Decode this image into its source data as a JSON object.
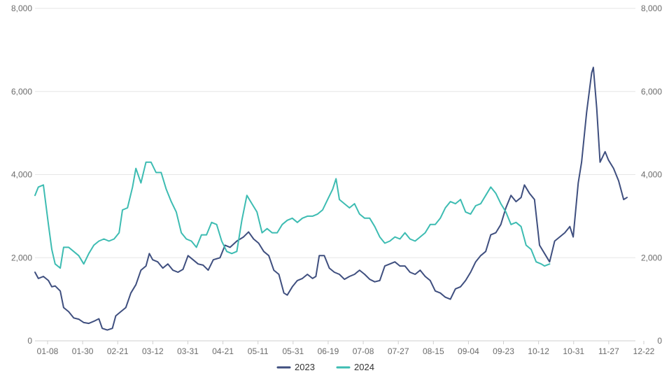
{
  "chart_data": {
    "type": "line",
    "title": "",
    "xlabel": "",
    "ylabel": "",
    "ylim": [
      0,
      8000
    ],
    "y2lim": [
      0,
      8000
    ],
    "y_ticks": [
      "0",
      "2,000",
      "4,000",
      "6,000",
      "8,000"
    ],
    "y2_ticks": [
      "0",
      "2,000",
      "4,000",
      "6,000",
      "8,000"
    ],
    "x_tick_labels": [
      "01-08",
      "01-30",
      "02-21",
      "03-12",
      "03-31",
      "04-21",
      "05-11",
      "05-31",
      "06-19",
      "07-08",
      "07-27",
      "08-15",
      "09-04",
      "09-23",
      "10-12",
      "10-31",
      "11-27",
      "12-22"
    ],
    "grid": true,
    "legend_position": "bottom-center",
    "series": [
      {
        "name": "2023",
        "color": "#3f4f7f",
        "points": [
          [
            "01-01",
            1650
          ],
          [
            "01-03",
            1500
          ],
          [
            "01-06",
            1550
          ],
          [
            "01-09",
            1450
          ],
          [
            "01-11",
            1300
          ],
          [
            "01-13",
            1320
          ],
          [
            "01-16",
            1200
          ],
          [
            "01-18",
            800
          ],
          [
            "01-21",
            700
          ],
          [
            "01-24",
            550
          ],
          [
            "01-27",
            520
          ],
          [
            "01-30",
            440
          ],
          [
            "02-02",
            420
          ],
          [
            "02-05",
            470
          ],
          [
            "02-08",
            530
          ],
          [
            "02-10",
            300
          ],
          [
            "02-13",
            260
          ],
          [
            "02-16",
            300
          ],
          [
            "02-18",
            600
          ],
          [
            "02-21",
            700
          ],
          [
            "02-24",
            800
          ],
          [
            "02-27",
            1150
          ],
          [
            "03-02",
            1350
          ],
          [
            "03-05",
            1700
          ],
          [
            "03-08",
            1800
          ],
          [
            "03-10",
            2100
          ],
          [
            "03-12",
            1950
          ],
          [
            "03-15",
            1900
          ],
          [
            "03-18",
            1750
          ],
          [
            "03-21",
            1850
          ],
          [
            "03-24",
            1700
          ],
          [
            "03-27",
            1650
          ],
          [
            "03-30",
            1720
          ],
          [
            "04-02",
            2050
          ],
          [
            "04-05",
            1950
          ],
          [
            "04-08",
            1850
          ],
          [
            "04-11",
            1820
          ],
          [
            "04-14",
            1700
          ],
          [
            "04-17",
            1950
          ],
          [
            "04-21",
            2000
          ],
          [
            "04-24",
            2300
          ],
          [
            "04-27",
            2250
          ],
          [
            "05-01",
            2400
          ],
          [
            "05-05",
            2500
          ],
          [
            "05-08",
            2620
          ],
          [
            "05-11",
            2450
          ],
          [
            "05-14",
            2350
          ],
          [
            "05-17",
            2150
          ],
          [
            "05-20",
            2050
          ],
          [
            "05-23",
            1700
          ],
          [
            "05-26",
            1600
          ],
          [
            "05-29",
            1150
          ],
          [
            "05-31",
            1100
          ],
          [
            "06-03",
            1300
          ],
          [
            "06-06",
            1450
          ],
          [
            "06-09",
            1500
          ],
          [
            "06-12",
            1600
          ],
          [
            "06-15",
            1500
          ],
          [
            "06-17",
            1550
          ],
          [
            "06-19",
            2050
          ],
          [
            "06-22",
            2050
          ],
          [
            "06-25",
            1750
          ],
          [
            "06-28",
            1650
          ],
          [
            "07-01",
            1600
          ],
          [
            "07-04",
            1480
          ],
          [
            "07-07",
            1550
          ],
          [
            "07-10",
            1600
          ],
          [
            "07-13",
            1700
          ],
          [
            "07-16",
            1600
          ],
          [
            "07-19",
            1480
          ],
          [
            "07-22",
            1420
          ],
          [
            "07-25",
            1450
          ],
          [
            "07-28",
            1800
          ],
          [
            "07-31",
            1850
          ],
          [
            "08-03",
            1900
          ],
          [
            "08-06",
            1800
          ],
          [
            "08-09",
            1800
          ],
          [
            "08-12",
            1650
          ],
          [
            "08-15",
            1600
          ],
          [
            "08-18",
            1700
          ],
          [
            "08-21",
            1550
          ],
          [
            "08-24",
            1450
          ],
          [
            "08-27",
            1200
          ],
          [
            "08-30",
            1150
          ],
          [
            "09-02",
            1050
          ],
          [
            "09-05",
            1000
          ],
          [
            "09-08",
            1250
          ],
          [
            "09-11",
            1300
          ],
          [
            "09-14",
            1450
          ],
          [
            "09-17",
            1650
          ],
          [
            "09-20",
            1900
          ],
          [
            "09-23",
            2050
          ],
          [
            "09-26",
            2150
          ],
          [
            "09-29",
            2550
          ],
          [
            "10-02",
            2600
          ],
          [
            "10-05",
            2800
          ],
          [
            "10-08",
            3200
          ],
          [
            "10-11",
            3500
          ],
          [
            "10-14",
            3350
          ],
          [
            "10-17",
            3450
          ],
          [
            "10-19",
            3750
          ],
          [
            "10-22",
            3550
          ],
          [
            "10-25",
            3400
          ],
          [
            "10-28",
            2300
          ],
          [
            "10-31",
            2100
          ],
          [
            "11-03",
            1900
          ],
          [
            "11-06",
            2400
          ],
          [
            "11-09",
            2500
          ],
          [
            "11-12",
            2600
          ],
          [
            "11-15",
            2750
          ],
          [
            "11-17",
            2500
          ],
          [
            "11-20",
            3800
          ],
          [
            "11-22",
            4300
          ],
          [
            "11-25",
            5500
          ],
          [
            "11-28",
            6450
          ],
          [
            "11-29",
            6580
          ],
          [
            "12-01",
            5600
          ],
          [
            "12-03",
            4300
          ],
          [
            "12-06",
            4550
          ],
          [
            "12-08",
            4350
          ],
          [
            "12-11",
            4150
          ],
          [
            "12-14",
            3850
          ],
          [
            "12-17",
            3400
          ],
          [
            "12-19",
            3450
          ]
        ]
      },
      {
        "name": "2024",
        "color": "#3dbcb2",
        "points": [
          [
            "01-01",
            3500
          ],
          [
            "01-03",
            3700
          ],
          [
            "01-06",
            3750
          ],
          [
            "01-09",
            2800
          ],
          [
            "01-11",
            2200
          ],
          [
            "01-13",
            1850
          ],
          [
            "01-16",
            1750
          ],
          [
            "01-18",
            2250
          ],
          [
            "01-21",
            2250
          ],
          [
            "01-24",
            2150
          ],
          [
            "01-27",
            2050
          ],
          [
            "01-30",
            1850
          ],
          [
            "02-02",
            2100
          ],
          [
            "02-05",
            2300
          ],
          [
            "02-08",
            2400
          ],
          [
            "02-11",
            2450
          ],
          [
            "02-14",
            2400
          ],
          [
            "02-17",
            2450
          ],
          [
            "02-20",
            2600
          ],
          [
            "02-22",
            3150
          ],
          [
            "02-25",
            3200
          ],
          [
            "02-28",
            3700
          ],
          [
            "03-02",
            4150
          ],
          [
            "03-05",
            3800
          ],
          [
            "03-08",
            4300
          ],
          [
            "03-11",
            4300
          ],
          [
            "03-14",
            4050
          ],
          [
            "03-17",
            4050
          ],
          [
            "03-20",
            3650
          ],
          [
            "03-23",
            3350
          ],
          [
            "03-26",
            3100
          ],
          [
            "03-29",
            2600
          ],
          [
            "04-01",
            2450
          ],
          [
            "04-04",
            2400
          ],
          [
            "04-07",
            2250
          ],
          [
            "04-10",
            2550
          ],
          [
            "04-13",
            2550
          ],
          [
            "04-16",
            2850
          ],
          [
            "04-19",
            2800
          ],
          [
            "04-22",
            2400
          ],
          [
            "04-25",
            2150
          ],
          [
            "04-28",
            2100
          ],
          [
            "05-01",
            2150
          ],
          [
            "05-04",
            2900
          ],
          [
            "05-07",
            3500
          ],
          [
            "05-10",
            3300
          ],
          [
            "05-13",
            3100
          ],
          [
            "05-16",
            2600
          ],
          [
            "05-19",
            2700
          ],
          [
            "05-22",
            2600
          ],
          [
            "05-25",
            2600
          ],
          [
            "05-28",
            2800
          ],
          [
            "05-31",
            2900
          ],
          [
            "06-03",
            2950
          ],
          [
            "06-06",
            2850
          ],
          [
            "06-09",
            2950
          ],
          [
            "06-12",
            3000
          ],
          [
            "06-15",
            3000
          ],
          [
            "06-18",
            3050
          ],
          [
            "06-21",
            3150
          ],
          [
            "06-24",
            3400
          ],
          [
            "06-27",
            3650
          ],
          [
            "06-29",
            3900
          ],
          [
            "07-01",
            3400
          ],
          [
            "07-04",
            3300
          ],
          [
            "07-07",
            3200
          ],
          [
            "07-10",
            3300
          ],
          [
            "07-13",
            3050
          ],
          [
            "07-16",
            2950
          ],
          [
            "07-19",
            2950
          ],
          [
            "07-22",
            2750
          ],
          [
            "07-25",
            2500
          ],
          [
            "07-28",
            2350
          ],
          [
            "07-31",
            2400
          ],
          [
            "08-03",
            2500
          ],
          [
            "08-06",
            2450
          ],
          [
            "08-09",
            2600
          ],
          [
            "08-12",
            2450
          ],
          [
            "08-15",
            2400
          ],
          [
            "08-18",
            2500
          ],
          [
            "08-21",
            2600
          ],
          [
            "08-24",
            2800
          ],
          [
            "08-27",
            2800
          ],
          [
            "08-30",
            2950
          ],
          [
            "09-02",
            3200
          ],
          [
            "09-05",
            3350
          ],
          [
            "09-08",
            3300
          ],
          [
            "09-11",
            3400
          ],
          [
            "09-14",
            3100
          ],
          [
            "09-17",
            3050
          ],
          [
            "09-20",
            3250
          ],
          [
            "09-23",
            3300
          ],
          [
            "09-26",
            3500
          ],
          [
            "09-29",
            3700
          ],
          [
            "10-02",
            3550
          ],
          [
            "10-05",
            3300
          ],
          [
            "10-08",
            3100
          ],
          [
            "10-11",
            2800
          ],
          [
            "10-14",
            2850
          ],
          [
            "10-17",
            2750
          ],
          [
            "10-20",
            2300
          ],
          [
            "10-23",
            2200
          ],
          [
            "10-26",
            1900
          ],
          [
            "10-29",
            1850
          ],
          [
            "10-31",
            1800
          ],
          [
            "11-03",
            1850
          ]
        ]
      }
    ]
  }
}
